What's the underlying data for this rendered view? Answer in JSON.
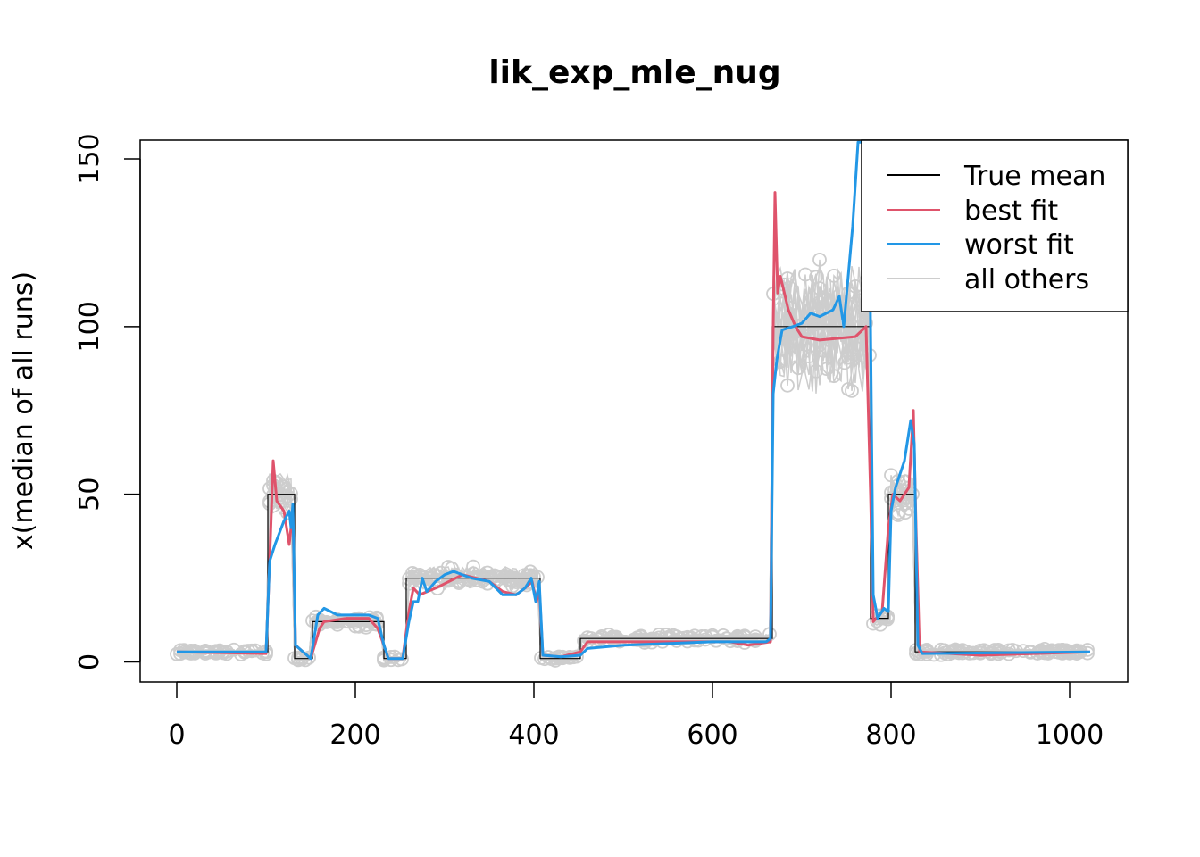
{
  "chart_data": {
    "type": "line",
    "title": "lik_exp_mle_nug",
    "xlabel": "",
    "ylabel": "x(median of all runs)",
    "xlim": [
      -41,
      1065
    ],
    "ylim": [
      -6,
      155.6
    ],
    "x_ticks": [
      0,
      200,
      400,
      600,
      800,
      1000
    ],
    "y_ticks": [
      0,
      50,
      100,
      150
    ],
    "legend_position": "top-right",
    "colors": {
      "true_mean": "#000000",
      "best_fit": "#DF536B",
      "worst_fit": "#2297E6",
      "all_others": "#CDCDCD"
    },
    "legend": [
      "True mean",
      "best fit",
      "worst fit",
      "all others"
    ],
    "true_mean": {
      "x": [
        0,
        102,
        102,
        132,
        132,
        152,
        152,
        232,
        232,
        257,
        257,
        407,
        407,
        452,
        452,
        667,
        667,
        777,
        777,
        797,
        797,
        827,
        827,
        1023
      ],
      "y": [
        3,
        3,
        50,
        50,
        1,
        1,
        12,
        12,
        1,
        1,
        25,
        25,
        1,
        1,
        7,
        7,
        100,
        100,
        13,
        13,
        50,
        50,
        3,
        3
      ]
    },
    "series": [
      {
        "name": "best fit",
        "x": [
          0,
          100,
          104,
          108,
          112,
          120,
          126,
          130,
          133,
          150,
          160,
          165,
          190,
          215,
          225,
          232,
          237,
          253,
          260,
          265,
          272,
          290,
          320,
          350,
          365,
          380,
          390,
          398,
          403,
          406,
          410,
          430,
          452,
          460,
          500,
          540,
          600,
          620,
          640,
          665,
          668,
          670,
          673,
          676,
          685,
          693,
          700,
          720,
          760,
          772,
          777,
          780,
          790,
          797,
          802,
          810,
          820,
          825,
          828,
          832,
          900,
          1023
        ],
        "y": [
          3,
          2.5,
          30,
          60,
          48,
          45,
          35,
          45,
          5,
          1,
          10,
          12,
          13,
          13,
          10,
          5,
          1,
          1,
          15,
          22,
          20,
          22,
          26,
          24,
          21,
          20,
          22,
          24,
          18,
          22,
          2,
          1.5,
          3,
          6,
          6,
          6,
          6,
          6,
          5,
          6,
          100,
          140,
          110,
          115,
          105,
          100,
          97,
          96,
          97,
          100,
          50,
          12,
          15,
          40,
          50,
          48,
          52,
          75,
          40,
          3,
          2,
          3
        ]
      },
      {
        "name": "worst fit",
        "x": [
          0,
          100,
          104,
          110,
          120,
          126,
          128,
          130,
          133,
          150,
          158,
          165,
          180,
          215,
          225,
          232,
          237,
          253,
          260,
          265,
          270,
          275,
          280,
          290,
          300,
          310,
          330,
          350,
          365,
          380,
          390,
          397,
          402,
          406,
          410,
          430,
          452,
          460,
          500,
          600,
          640,
          660,
          665,
          668,
          672,
          678,
          690,
          700,
          710,
          720,
          735,
          742,
          747,
          752,
          757,
          763,
          775,
          780,
          785,
          792,
          797,
          800,
          805,
          815,
          822,
          826,
          830,
          835,
          1023
        ],
        "y": [
          3,
          3,
          30,
          35,
          42,
          45,
          40,
          47,
          5,
          1,
          14,
          16,
          14,
          14,
          13,
          5,
          1,
          1,
          12,
          18,
          18,
          25,
          21,
          24,
          26,
          27,
          25,
          24,
          20,
          20,
          22,
          25,
          18,
          24,
          2,
          1.5,
          2,
          4,
          5,
          6,
          6,
          6,
          7,
          80,
          90,
          99,
          100,
          101,
          104,
          103,
          105,
          109,
          100,
          115,
          130,
          155,
          155,
          20,
          13,
          16,
          15,
          45,
          52,
          60,
          72,
          65,
          5,
          2.5,
          3
        ]
      }
    ],
    "all_others_runs": 20
  }
}
